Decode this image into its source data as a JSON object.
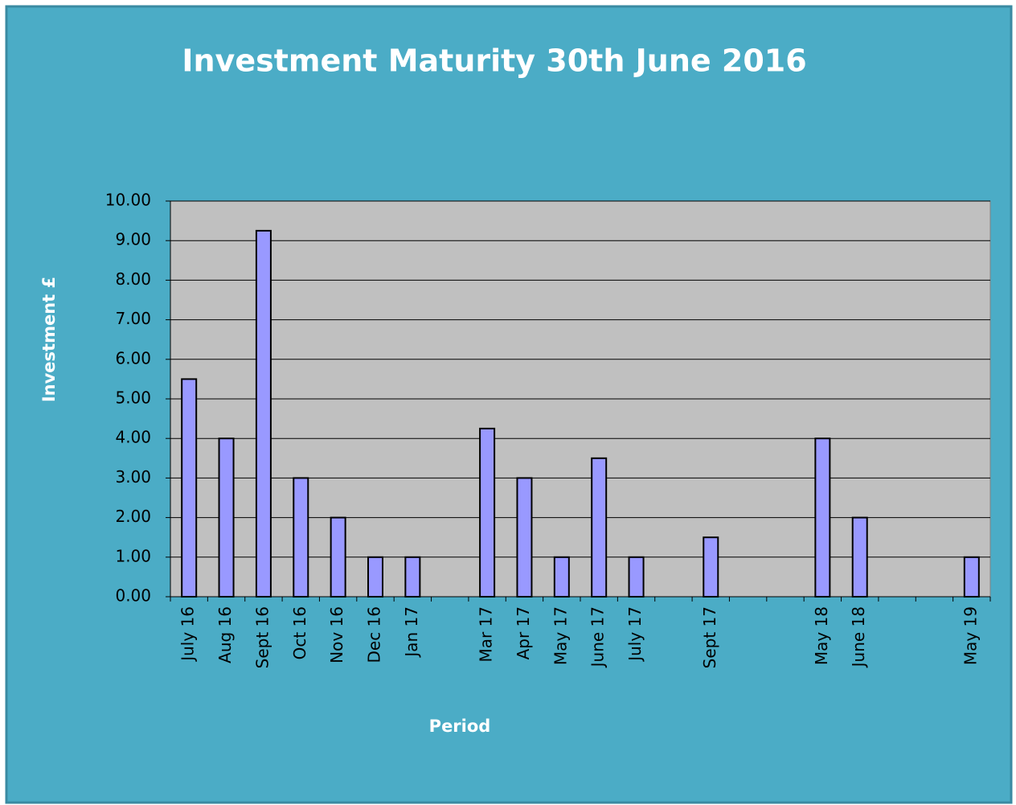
{
  "chart_data": {
    "type": "bar",
    "title": "Investment Maturity 30th June 2016",
    "x_label": "Period",
    "y_label": "Investment £",
    "categories": [
      "July 16",
      "Aug 16",
      "Sept 16",
      "Oct 16",
      "Nov 16",
      "Dec 16",
      "Jan 17",
      null,
      "Mar 17",
      "Apr 17",
      "May 17",
      "June 17",
      "July 17",
      null,
      "Sept 17",
      null,
      null,
      "May 18",
      "June 18",
      null,
      null,
      "May 19"
    ],
    "values": [
      5.5,
      4,
      9.25,
      3,
      2,
      1,
      1,
      null,
      4.25,
      3,
      1,
      3.5,
      1,
      null,
      1.5,
      null,
      null,
      4,
      2,
      null,
      null,
      1
    ],
    "color": "#9999ff",
    "ylim": [
      0,
      10
    ],
    "yticks": [
      {
        "value": 0,
        "label": "0.00"
      },
      {
        "value": 1,
        "label": "1.00"
      },
      {
        "value": 2,
        "label": "2.00"
      },
      {
        "value": 3,
        "label": "3.00"
      },
      {
        "value": 4,
        "label": "4.00"
      },
      {
        "value": 5,
        "label": "5.00"
      },
      {
        "value": 6,
        "label": "6.00"
      },
      {
        "value": 7,
        "label": "7.00"
      },
      {
        "value": 8,
        "label": "8.00"
      },
      {
        "value": 9,
        "label": "9.00"
      },
      {
        "value": 10,
        "label": "10.00"
      }
    ],
    "grid": true
  }
}
